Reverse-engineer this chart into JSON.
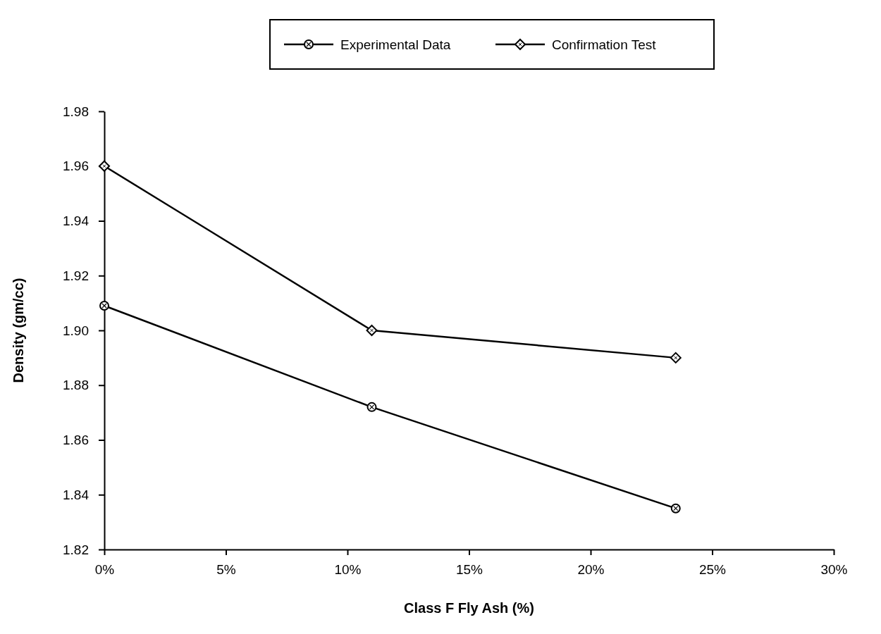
{
  "chart_data": {
    "type": "line",
    "xlabel": "Class F Fly Ash (%)",
    "ylabel": "Density  (gm/cc)",
    "xlim": [
      0,
      30
    ],
    "xticks": [
      {
        "value": 0,
        "label": "0%"
      },
      {
        "value": 5,
        "label": "5%"
      },
      {
        "value": 10,
        "label": "10%"
      },
      {
        "value": 15,
        "label": "15%"
      },
      {
        "value": 20,
        "label": "20%"
      },
      {
        "value": 25,
        "label": "25%"
      },
      {
        "value": 30,
        "label": "30%"
      }
    ],
    "ylim": [
      1.82,
      1.98
    ],
    "yticks": [
      {
        "value": 1.82,
        "label": "1.82"
      },
      {
        "value": 1.84,
        "label": "1.84"
      },
      {
        "value": 1.86,
        "label": "1.86"
      },
      {
        "value": 1.88,
        "label": "1.88"
      },
      {
        "value": 1.9,
        "label": "1.90"
      },
      {
        "value": 1.92,
        "label": "1.92"
      },
      {
        "value": 1.94,
        "label": "1.94"
      },
      {
        "value": 1.96,
        "label": "1.96"
      },
      {
        "value": 1.98,
        "label": "1.98"
      }
    ],
    "x": [
      0,
      11,
      23.5
    ],
    "series": [
      {
        "name": "Experimental Data",
        "color": "#000000",
        "marker": "circle",
        "values": [
          1.909,
          1.872,
          1.835
        ]
      },
      {
        "name": "Confirmation Test",
        "color": "#000000",
        "marker": "diamond",
        "values": [
          1.96,
          1.9,
          1.89
        ]
      }
    ],
    "legend": "top",
    "grid": false,
    "line_style": "solid"
  }
}
